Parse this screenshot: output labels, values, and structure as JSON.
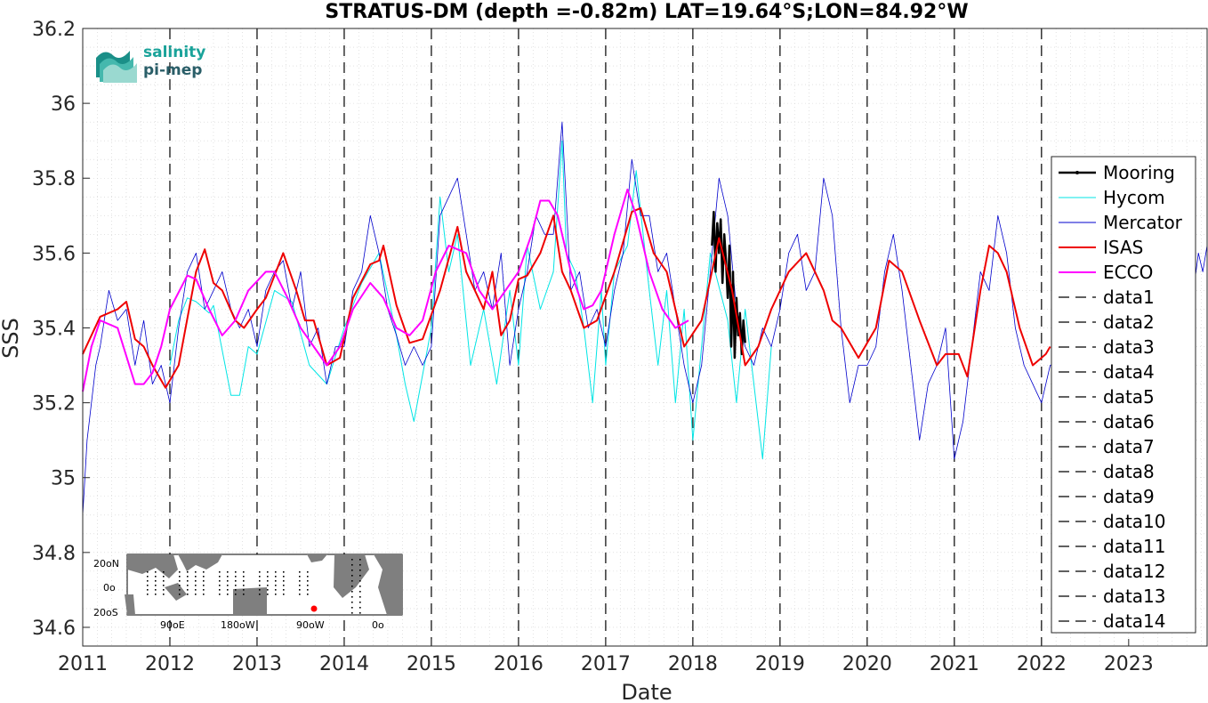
{
  "chart_data": {
    "type": "line",
    "title": "STRATUS-DM (depth =-0.82m) LAT=19.64°S;LON=84.92°W",
    "xlabel": "Date",
    "ylabel": "SSS",
    "xlim": [
      2011.0,
      2023.9
    ],
    "ylim": [
      34.55,
      36.2
    ],
    "xticks": [
      "2011",
      "2012",
      "2013",
      "2014",
      "2015",
      "2016",
      "2017",
      "2018",
      "2019",
      "2020",
      "2021",
      "2022",
      "2023"
    ],
    "yticks": [
      "34.6",
      "34.8",
      "35",
      "35.2",
      "35.4",
      "35.6",
      "35.8",
      "36",
      "36.2"
    ],
    "grid": "minor dotted",
    "legend_position": "right",
    "vertical_lines": [
      2012,
      2013,
      2014,
      2015,
      2016,
      2017,
      2018,
      2019,
      2020,
      2021,
      2022
    ],
    "series": [
      {
        "name": "Mooring",
        "color": "#000000",
        "x": [
          2018.22,
          2018.24,
          2018.26,
          2018.28,
          2018.3,
          2018.32,
          2018.34,
          2018.36,
          2018.38,
          2018.4,
          2018.42,
          2018.44,
          2018.46,
          2018.48,
          2018.5,
          2018.52,
          2018.54,
          2018.56,
          2018.58,
          2018.6
        ],
        "y": [
          35.62,
          35.71,
          35.55,
          35.68,
          35.6,
          35.69,
          35.52,
          35.65,
          35.58,
          35.48,
          35.62,
          35.35,
          35.55,
          35.32,
          35.48,
          35.38,
          35.44,
          35.33,
          35.42,
          35.36
        ]
      },
      {
        "name": "Hycom",
        "color": "#00e5e5",
        "x": [
          2012.0,
          2012.1,
          2012.2,
          2012.3,
          2012.45,
          2012.5,
          2012.7,
          2012.8,
          2012.9,
          2013.0,
          2013.2,
          2013.4,
          2013.6,
          2013.8,
          2014.0,
          2014.2,
          2014.4,
          2014.6,
          2014.7,
          2014.8,
          2015.0,
          2015.1,
          2015.2,
          2015.3,
          2015.45,
          2015.6,
          2015.75,
          2015.9,
          2016.0,
          2016.1,
          2016.25,
          2016.4,
          2016.5,
          2016.55,
          2016.65,
          2016.75,
          2016.85,
          2016.95,
          2017.0,
          2017.1,
          2017.25,
          2017.35,
          2017.5,
          2017.6,
          2017.7,
          2017.8,
          2017.9,
          2018.0,
          2018.1,
          2018.2,
          2018.4,
          2018.5,
          2018.6,
          2018.7,
          2018.8,
          2018.9
        ],
        "y": [
          35.3,
          35.42,
          35.48,
          35.47,
          35.44,
          35.46,
          35.22,
          35.22,
          35.35,
          35.33,
          35.5,
          35.47,
          35.3,
          35.25,
          35.4,
          35.52,
          35.6,
          35.38,
          35.25,
          35.15,
          35.4,
          35.75,
          35.55,
          35.65,
          35.3,
          35.45,
          35.25,
          35.5,
          35.3,
          35.62,
          35.45,
          35.55,
          35.9,
          35.6,
          35.55,
          35.4,
          35.2,
          35.5,
          35.3,
          35.55,
          35.62,
          35.82,
          35.5,
          35.3,
          35.5,
          35.2,
          35.45,
          35.1,
          35.35,
          35.6,
          35.42,
          35.2,
          35.45,
          35.25,
          35.05,
          35.35
        ]
      },
      {
        "name": "Mercator",
        "color": "#0000cc",
        "x": [
          2011.0,
          2011.05,
          2011.1,
          2011.15,
          2011.2,
          2011.3,
          2011.4,
          2011.5,
          2011.6,
          2011.7,
          2011.8,
          2011.9,
          2012.0,
          2012.1,
          2012.2,
          2012.3,
          2012.4,
          2012.5,
          2012.6,
          2012.7,
          2012.8,
          2012.9,
          2013.0,
          2013.1,
          2013.2,
          2013.3,
          2013.4,
          2013.5,
          2013.6,
          2013.7,
          2013.8,
          2013.9,
          2014.0,
          2014.1,
          2014.2,
          2014.3,
          2014.4,
          2014.5,
          2014.6,
          2014.7,
          2014.8,
          2014.9,
          2015.0,
          2015.1,
          2015.2,
          2015.3,
          2015.4,
          2015.5,
          2015.6,
          2015.7,
          2015.8,
          2015.9,
          2016.0,
          2016.1,
          2016.2,
          2016.3,
          2016.4,
          2016.5,
          2016.6,
          2016.7,
          2016.8,
          2016.9,
          2017.0,
          2017.1,
          2017.2,
          2017.3,
          2017.4,
          2017.5,
          2017.6,
          2017.7,
          2017.8,
          2017.9,
          2018.0,
          2018.1,
          2018.2,
          2018.3,
          2018.4,
          2018.5,
          2018.6,
          2018.7,
          2018.8,
          2018.9,
          2019.0,
          2019.1,
          2019.2,
          2019.3,
          2019.4,
          2019.5,
          2019.6,
          2019.7,
          2019.8,
          2019.9,
          2020.0,
          2020.1,
          2020.2,
          2020.3,
          2020.4,
          2020.5,
          2020.6,
          2020.7,
          2020.8,
          2020.9,
          2021.0,
          2021.1,
          2021.2,
          2021.3,
          2021.4,
          2021.5,
          2021.6,
          2021.7,
          2021.8,
          2021.9,
          2022.0,
          2022.1,
          2023.7,
          2023.8,
          2023.85,
          2023.9
        ],
        "y": [
          34.9,
          35.1,
          35.2,
          35.3,
          35.35,
          35.5,
          35.42,
          35.45,
          35.3,
          35.42,
          35.25,
          35.3,
          35.2,
          35.4,
          35.55,
          35.6,
          35.45,
          35.5,
          35.55,
          35.45,
          35.4,
          35.45,
          35.35,
          35.5,
          35.55,
          35.58,
          35.45,
          35.55,
          35.35,
          35.4,
          35.25,
          35.35,
          35.35,
          35.5,
          35.55,
          35.7,
          35.6,
          35.45,
          35.38,
          35.3,
          35.35,
          35.3,
          35.35,
          35.7,
          35.75,
          35.8,
          35.65,
          35.5,
          35.55,
          35.45,
          35.6,
          35.3,
          35.45,
          35.55,
          35.7,
          35.65,
          35.65,
          35.95,
          35.5,
          35.55,
          35.4,
          35.45,
          35.35,
          35.5,
          35.6,
          35.85,
          35.7,
          35.7,
          35.55,
          35.6,
          35.45,
          35.3,
          35.2,
          35.3,
          35.55,
          35.8,
          35.7,
          35.45,
          35.35,
          35.3,
          35.4,
          35.35,
          35.45,
          35.6,
          35.65,
          35.5,
          35.55,
          35.8,
          35.7,
          35.4,
          35.2,
          35.3,
          35.3,
          35.35,
          35.55,
          35.65,
          35.5,
          35.3,
          35.1,
          35.25,
          35.3,
          35.4,
          35.05,
          35.15,
          35.35,
          35.55,
          35.5,
          35.7,
          35.6,
          35.4,
          35.3,
          35.25,
          35.2,
          35.3,
          35.42,
          35.6,
          35.55,
          35.62
        ]
      },
      {
        "name": "ISAS",
        "color": "#ee0000",
        "x": [
          2011.0,
          2011.2,
          2011.4,
          2011.5,
          2011.6,
          2011.7,
          2011.8,
          2011.95,
          2012.1,
          2012.3,
          2012.4,
          2012.5,
          2012.6,
          2012.75,
          2012.85,
          2013.0,
          2013.1,
          2013.3,
          2013.45,
          2013.55,
          2013.65,
          2013.8,
          2013.95,
          2014.1,
          2014.3,
          2014.4,
          2014.45,
          2014.6,
          2014.75,
          2014.9,
          2015.1,
          2015.3,
          2015.4,
          2015.5,
          2015.6,
          2015.7,
          2015.8,
          2015.9,
          2016.0,
          2016.1,
          2016.25,
          2016.4,
          2016.5,
          2016.6,
          2016.75,
          2016.9,
          2017.1,
          2017.3,
          2017.4,
          2017.55,
          2017.7,
          2017.8,
          2017.9,
          2018.1,
          2018.3,
          2018.45,
          2018.6,
          2018.75,
          2018.9,
          2019.1,
          2019.3,
          2019.5,
          2019.6,
          2019.7,
          2019.9,
          2020.1,
          2020.25,
          2020.4,
          2020.6,
          2020.8,
          2020.9,
          2021.05,
          2021.15,
          2021.3,
          2021.4,
          2021.5,
          2021.6,
          2021.75,
          2021.9,
          2022.05,
          2022.1
        ],
        "y": [
          35.33,
          35.43,
          35.45,
          35.47,
          35.37,
          35.35,
          35.3,
          35.24,
          35.3,
          35.55,
          35.61,
          35.52,
          35.5,
          35.42,
          35.4,
          35.45,
          35.48,
          35.6,
          35.5,
          35.42,
          35.42,
          35.3,
          35.32,
          35.48,
          35.57,
          35.58,
          35.62,
          35.46,
          35.36,
          35.37,
          35.5,
          35.67,
          35.55,
          35.5,
          35.45,
          35.55,
          35.38,
          35.42,
          35.53,
          35.54,
          35.6,
          35.7,
          35.55,
          35.5,
          35.4,
          35.42,
          35.55,
          35.71,
          35.72,
          35.6,
          35.55,
          35.45,
          35.35,
          35.42,
          35.64,
          35.5,
          35.3,
          35.35,
          35.45,
          35.55,
          35.6,
          35.5,
          35.42,
          35.4,
          35.32,
          35.4,
          35.58,
          35.55,
          35.42,
          35.3,
          35.33,
          35.33,
          35.27,
          35.5,
          35.62,
          35.6,
          35.55,
          35.4,
          35.3,
          35.33,
          35.35
        ]
      },
      {
        "name": "ECCO",
        "color": "#ff00ff",
        "x": [
          2011.0,
          2011.1,
          2011.2,
          2011.4,
          2011.6,
          2011.7,
          2011.8,
          2011.9,
          2012.0,
          2012.2,
          2012.3,
          2012.45,
          2012.6,
          2012.75,
          2012.9,
          2013.1,
          2013.2,
          2013.35,
          2013.5,
          2013.65,
          2013.8,
          2013.95,
          2014.1,
          2014.3,
          2014.45,
          2014.6,
          2014.75,
          2014.9,
          2015.05,
          2015.2,
          2015.4,
          2015.55,
          2015.7,
          2015.85,
          2016.0,
          2016.15,
          2016.25,
          2016.35,
          2016.45,
          2016.6,
          2016.75,
          2016.85,
          2016.95,
          2017.1,
          2017.25,
          2017.35,
          2017.5,
          2017.65,
          2017.8,
          2017.95
        ],
        "y": [
          35.23,
          35.35,
          35.42,
          35.4,
          35.25,
          35.25,
          35.28,
          35.35,
          35.45,
          35.54,
          35.53,
          35.45,
          35.38,
          35.42,
          35.5,
          35.55,
          35.55,
          35.48,
          35.4,
          35.35,
          35.3,
          35.35,
          35.45,
          35.52,
          35.48,
          35.4,
          35.38,
          35.42,
          35.55,
          35.62,
          35.6,
          35.5,
          35.45,
          35.5,
          35.55,
          35.65,
          35.74,
          35.74,
          35.7,
          35.55,
          35.45,
          35.46,
          35.5,
          35.65,
          35.77,
          35.7,
          35.55,
          35.45,
          35.4,
          35.42
        ]
      }
    ],
    "legend_entries": [
      "Mooring",
      "Hycom",
      "Mercator",
      "ISAS",
      "ECCO",
      "data1",
      "data2",
      "data3",
      "data4",
      "data5",
      "data6",
      "data7",
      "data8",
      "data9",
      "data10",
      "data11",
      "data12",
      "data13",
      "data14"
    ]
  },
  "logo": {
    "line1": "salinity",
    "line2": "pi-mep"
  },
  "inset_map": {
    "lat_labels": [
      "20oN",
      "0o",
      "20oS"
    ],
    "lon_labels": [
      "90oE",
      "180oW",
      "90oW",
      "0o"
    ],
    "marker_color": "#ff0000"
  }
}
